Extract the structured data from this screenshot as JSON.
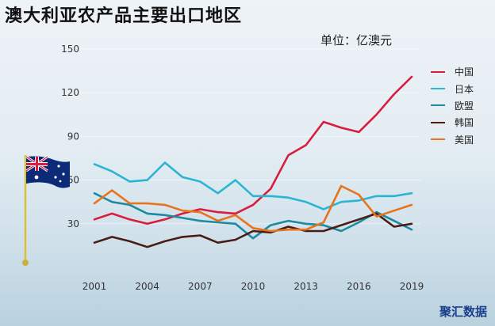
{
  "title": "澳大利亚农产品主要出口地区",
  "unit_label": "单位：亿澳元",
  "brand": "聚汇数据",
  "chart_data": {
    "type": "line",
    "title": "澳大利亚农产品主要出口地区",
    "ylabel": "单位：亿澳元",
    "x": [
      2001,
      2002,
      2003,
      2004,
      2005,
      2006,
      2007,
      2008,
      2009,
      2010,
      2011,
      2012,
      2013,
      2014,
      2015,
      2016,
      2017,
      2018,
      2019
    ],
    "x_ticks": [
      "2001",
      "2004",
      "2007",
      "2010",
      "2013",
      "2016",
      "2019"
    ],
    "y_ticks": [
      "30",
      "60",
      "90",
      "120",
      "150"
    ],
    "ylim": [
      0,
      150
    ],
    "legend_position": "right",
    "series": [
      {
        "name": "中国",
        "color": "#d81e3c",
        "values": [
          33,
          37,
          33,
          30,
          33,
          37,
          40,
          38,
          37,
          43,
          54,
          77,
          84,
          100,
          96,
          93,
          105,
          119,
          131
        ]
      },
      {
        "name": "日本",
        "color": "#2ab5d3",
        "values": [
          71,
          66,
          59,
          60,
          72,
          62,
          59,
          51,
          60,
          49,
          49,
          48,
          45,
          40,
          45,
          46,
          49,
          49,
          51
        ]
      },
      {
        "name": "欧盟",
        "color": "#1c8aa1",
        "values": [
          51,
          45,
          43,
          37,
          36,
          34,
          32,
          31,
          30,
          20,
          29,
          32,
          30,
          29,
          25,
          31,
          38,
          32,
          26
        ]
      },
      {
        "name": "韩国",
        "color": "#4a1c16",
        "values": [
          17,
          21,
          18,
          14,
          18,
          21,
          22,
          17,
          19,
          25,
          24,
          28,
          25,
          25,
          29,
          33,
          37,
          28,
          30
        ]
      },
      {
        "name": "美国",
        "color": "#e8731a",
        "values": [
          44,
          53,
          44,
          44,
          43,
          39,
          38,
          32,
          36,
          27,
          25,
          26,
          26,
          31,
          56,
          50,
          35,
          39,
          43
        ]
      }
    ]
  }
}
